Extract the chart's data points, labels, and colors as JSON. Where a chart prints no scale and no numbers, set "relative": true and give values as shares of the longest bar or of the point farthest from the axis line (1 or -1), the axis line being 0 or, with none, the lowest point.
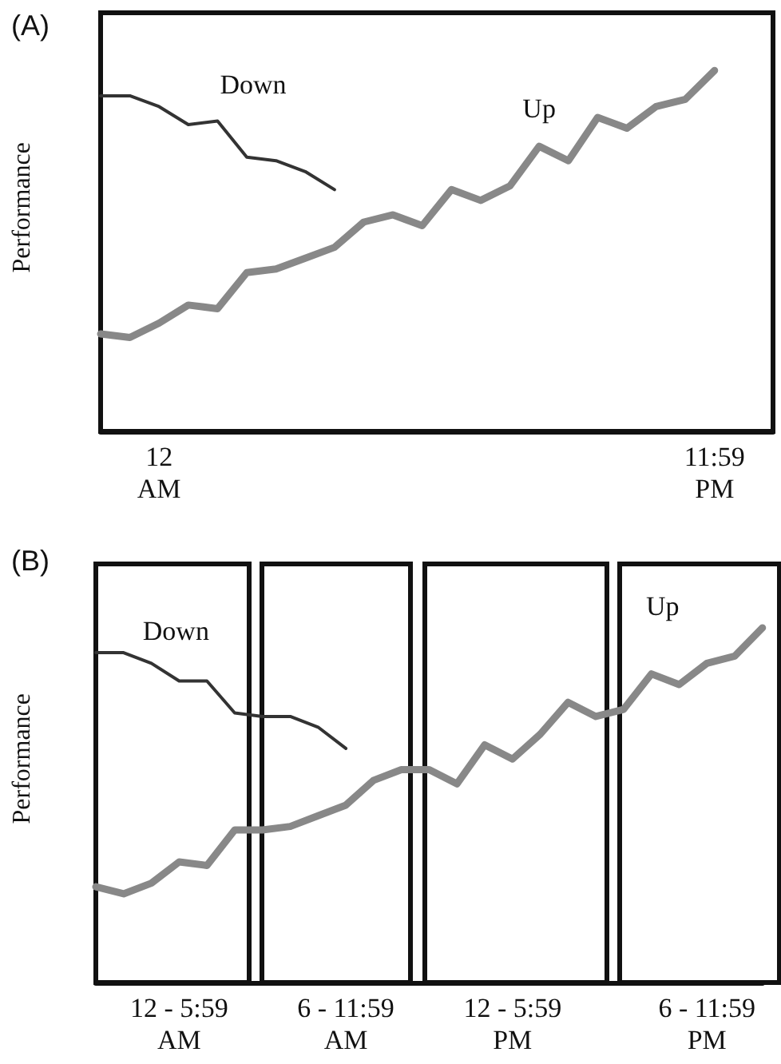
{
  "chart_data": [
    {
      "type": "line",
      "title": "(A)",
      "ylabel": "Performance",
      "relative": true,
      "tick_labels": "x",
      "grid": false,
      "legend": false,
      "marker": "none",
      "line_style": "solid",
      "categories": [
        null,
        null,
        "12\nAM",
        null,
        null,
        null,
        null,
        null,
        null,
        null,
        null,
        null,
        null,
        null,
        null,
        null,
        null,
        null,
        null,
        null,
        null,
        "11:59\nPM",
        null,
        null
      ],
      "series": [
        {
          "name": "Down",
          "color": "#333333",
          "values": [
            0.93,
            0.93,
            0.9,
            0.85,
            0.86,
            0.76,
            0.75,
            0.72,
            0.67,
            null,
            null,
            null,
            null,
            null,
            null,
            null,
            null,
            null,
            null,
            null,
            null,
            null,
            null,
            null
          ]
        },
        {
          "name": "Up",
          "color": "#888888",
          "values": [
            0.27,
            0.26,
            0.3,
            0.35,
            0.34,
            0.44,
            0.45,
            0.48,
            0.51,
            0.58,
            0.6,
            0.57,
            0.67,
            0.64,
            0.68,
            0.79,
            0.75,
            0.87,
            0.84,
            0.9,
            0.92,
            1.0,
            null,
            null
          ]
        }
      ]
    },
    {
      "type": "line",
      "title": "(B)",
      "ylabel": "Performance",
      "relative": true,
      "tick_labels": "x",
      "grid": false,
      "legend": false,
      "marker": "none",
      "line_style": "solid",
      "categories": [
        null,
        null,
        null,
        "12 - 5:59\nAM",
        null,
        null,
        null,
        null,
        null,
        "6 - 11:59\nAM",
        null,
        null,
        null,
        null,
        null,
        "12 - 5:59\nPM",
        null,
        null,
        null,
        null,
        null,
        null,
        "6 - 11:59\nPM",
        null,
        null
      ],
      "series": [
        {
          "name": "Down",
          "color": "#333333",
          "values": [
            0.93,
            0.93,
            0.9,
            0.85,
            0.85,
            0.76,
            0.75,
            0.75,
            0.72,
            0.66,
            null,
            null,
            null,
            null,
            null,
            null,
            null,
            null,
            null,
            null,
            null,
            null,
            null,
            null,
            null
          ]
        },
        {
          "name": "Up",
          "color": "#888888",
          "values": [
            0.27,
            0.25,
            0.28,
            0.34,
            0.33,
            0.43,
            0.43,
            0.44,
            0.47,
            0.5,
            0.57,
            0.6,
            0.6,
            0.56,
            0.67,
            0.63,
            0.7,
            0.79,
            0.75,
            0.77,
            0.87,
            0.84,
            0.9,
            0.92,
            1.0
          ]
        }
      ]
    }
  ]
}
